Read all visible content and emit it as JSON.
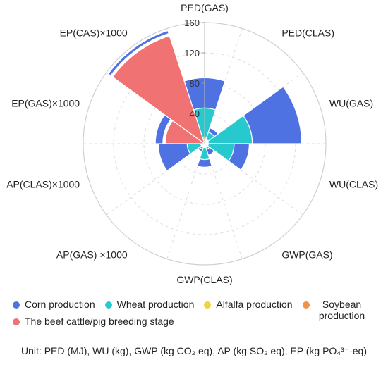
{
  "chart_data": {
    "type": "polar-stacked-bar",
    "title": "",
    "r_range": [
      0,
      160
    ],
    "r_ticks": [
      "40",
      "80",
      "120",
      "160"
    ],
    "grid": true,
    "legend_placement": "bottom",
    "categories": [
      "PED(GAS)",
      "PED(CLAS)",
      "WU(GAS)",
      "WU(CLAS)",
      "GWP(GAS)",
      "GWP(CLAS)",
      "AP(GAS) ×1000",
      "AP(CLAS)×1000",
      "EP(GAS)×1000",
      "EP(CAS)×1000"
    ],
    "series": [
      {
        "name": "The beef cattle/pig breeding stage",
        "color": "#f07272",
        "values": [
          5,
          4,
          3,
          3,
          3,
          3,
          3,
          3,
          52,
          150
        ]
      },
      {
        "name": "Soybean production",
        "color": "#f0934a",
        "values": [
          1,
          1,
          1,
          1,
          1,
          1,
          1,
          1,
          1,
          1
        ]
      },
      {
        "name": "Alfalfa production",
        "color": "#f2d33a",
        "values": [
          3,
          1,
          1,
          1,
          1,
          1,
          1,
          1,
          1,
          1
        ]
      },
      {
        "name": "Wheat production",
        "color": "#27c9cf",
        "values": [
          38,
          10,
          58,
          34,
          3,
          16,
          3,
          18,
          1,
          1
        ]
      },
      {
        "name": "Corn production",
        "color": "#4f72e3",
        "values": [
          40,
          6,
          65,
          20,
          8,
          10,
          3,
          38,
          10,
          4
        ]
      }
    ]
  },
  "legend": {
    "corn": "Corn production",
    "wheat": "Wheat production",
    "alfalfa": "Alfalfa production",
    "soybean": "Soybean production",
    "beef": "The beef cattle/pig breeding stage"
  },
  "unit_text": "Unit: PED (MJ), WU (kg), GWP (kg CO₂ eq), AP (kg SO₂ eq), EP (kg PO₄³⁻-eq)"
}
